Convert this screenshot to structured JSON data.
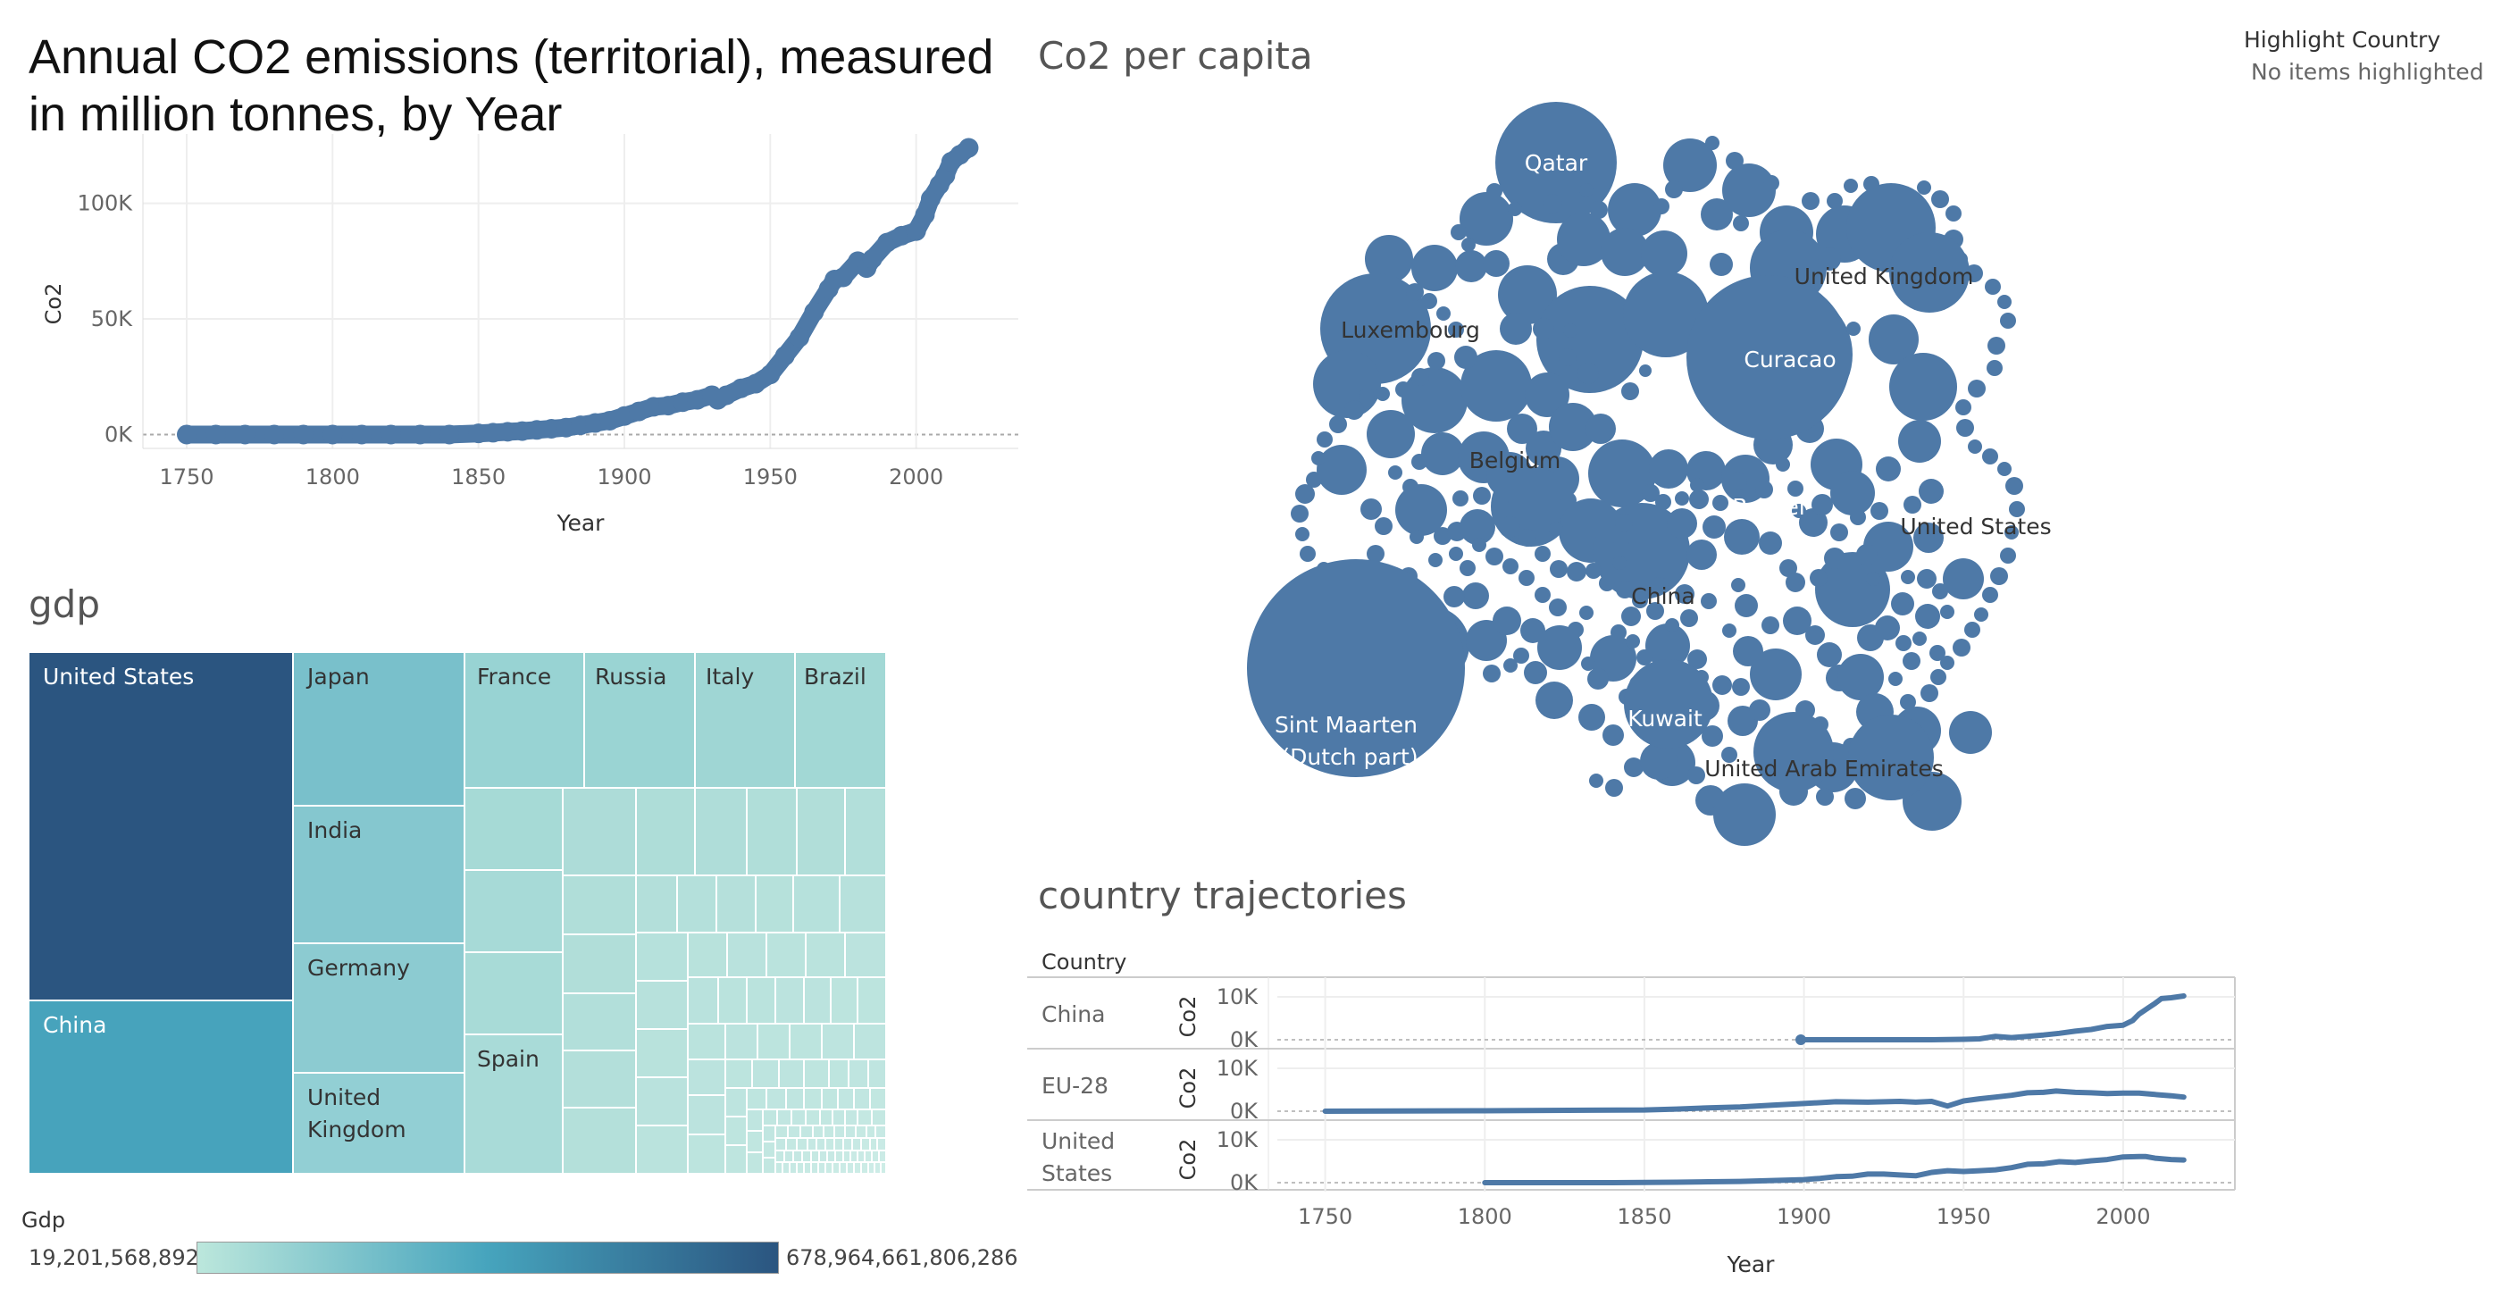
{
  "annual": {
    "title": "Annual CO2 emissions (territorial), measured in million tonnes, by Year",
    "ylabel": "Co2",
    "xlabel": "Year"
  },
  "highlight": {
    "title": "Highlight Country",
    "value": "No items highlighted"
  },
  "bubbles": {
    "title": "Co2 per capita"
  },
  "gdp": {
    "title": "gdp",
    "legend_title": "Gdp",
    "legend_min": "19,201,568,892",
    "legend_max": "678,964,661,806,286"
  },
  "trajectories": {
    "title": "country trajectories",
    "header": "Country",
    "xlabel": "Year"
  },
  "colors": {
    "series": "#4e79a7",
    "grid": "#eeeeee",
    "zero_line": "#aaaaaa",
    "treemap_dark": "#2b5580",
    "treemap_light": "#bce7dc"
  },
  "chart_data": [
    {
      "type": "scatter",
      "title": "Annual CO2 emissions (territorial), measured in million tonnes, by Year",
      "xlabel": "Year",
      "ylabel": "Co2",
      "xlim": [
        1735,
        2035
      ],
      "ylim": [
        -6000,
        130000
      ],
      "xticks": [
        1750,
        1800,
        1850,
        1900,
        1950,
        2000
      ],
      "xtick_labels": [
        "1750",
        "1800",
        "1850",
        "1900",
        "1950",
        "2000"
      ],
      "yticks": [
        0,
        50000,
        100000
      ],
      "ytick_labels": [
        "0K",
        "50K",
        "100K"
      ],
      "grid": true,
      "series": [
        {
          "x": [
            1750,
            1760,
            1770,
            1780,
            1790,
            1800,
            1810,
            1820,
            1830,
            1840,
            1850,
            1855,
            1860,
            1865,
            1870,
            1875,
            1880,
            1885,
            1890,
            1895,
            1900,
            1905,
            1910,
            1915,
            1920,
            1925,
            1930,
            1932,
            1935,
            1940,
            1945,
            1950,
            1955,
            1960,
            1965,
            1970,
            1972,
            1975,
            1980,
            1983,
            1985,
            1990,
            1995,
            2000,
            2003,
            2005,
            2008,
            2010,
            2012,
            2015,
            2018
          ],
          "y": [
            0,
            0,
            0,
            0,
            0,
            0,
            0,
            0,
            0,
            0,
            500,
            800,
            1200,
            1500,
            2000,
            2500,
            3000,
            4000,
            5000,
            6000,
            8000,
            10000,
            12000,
            12500,
            14000,
            15000,
            17000,
            15000,
            17000,
            20000,
            22000,
            26000,
            34000,
            42000,
            53000,
            63000,
            67000,
            68000,
            75000,
            72000,
            76000,
            83000,
            86000,
            88000,
            95000,
            102000,
            108000,
            112000,
            118000,
            121000,
            124000
          ]
        }
      ]
    },
    {
      "type": "bubble",
      "title": "Co2 per capita",
      "labels": [
        "Qatar",
        "United Kingdom",
        "Luxembourg",
        "Curacao",
        "Belgium",
        "Brunei",
        "United States",
        "China",
        "Kuwait",
        "United Arab Emirates",
        "Sint Maarten (Dutch part)"
      ]
    },
    {
      "type": "treemap",
      "title": "gdp",
      "labels": [
        "United States",
        "China",
        "Japan",
        "India",
        "Germany",
        "United Kingdom",
        "France",
        "Russia",
        "Italy",
        "Brazil",
        "Spain"
      ],
      "color_range": [
        "19,201,568,892",
        "678,964,661,806,286"
      ]
    },
    {
      "type": "line",
      "title": "country trajectories",
      "xlabel": "Year",
      "ylabel": "Co2",
      "xlim": [
        1735,
        2035
      ],
      "xticks": [
        1750,
        1800,
        1850,
        1900,
        1950,
        2000
      ],
      "xtick_labels": [
        "1750",
        "1800",
        "1850",
        "1900",
        "1950",
        "2000"
      ],
      "ytick_labels": [
        "10K",
        "0K"
      ],
      "grid": true,
      "series": [
        {
          "name": "China",
          "x": [
            1899,
            1910,
            1920,
            1930,
            1940,
            1950,
            1955,
            1960,
            1965,
            1970,
            1975,
            1980,
            1985,
            1990,
            1995,
            2000,
            2003,
            2005,
            2008,
            2010,
            2012,
            2015,
            2019
          ],
          "y": [
            0,
            0,
            0,
            0,
            0,
            100,
            200,
            800,
            500,
            800,
            1100,
            1500,
            2000,
            2400,
            3100,
            3400,
            4500,
            6000,
            7500,
            8500,
            9600,
            9800,
            10200
          ]
        },
        {
          "name": "EU-28",
          "x": [
            1750,
            1800,
            1850,
            1860,
            1870,
            1880,
            1890,
            1900,
            1910,
            1920,
            1930,
            1935,
            1940,
            1945,
            1950,
            1955,
            1960,
            1965,
            1970,
            1975,
            1979,
            1985,
            1990,
            1995,
            2000,
            2005,
            2010,
            2015,
            2019
          ],
          "y": [
            0,
            100,
            300,
            500,
            800,
            1000,
            1400,
            1800,
            2200,
            2100,
            2300,
            2100,
            2300,
            1200,
            2400,
            2900,
            3300,
            3700,
            4300,
            4400,
            4700,
            4400,
            4300,
            4100,
            4200,
            4200,
            3900,
            3600,
            3300
          ]
        },
        {
          "name": "United States",
          "x": [
            1800,
            1820,
            1840,
            1860,
            1870,
            1880,
            1890,
            1900,
            1905,
            1910,
            1915,
            1920,
            1925,
            1930,
            1935,
            1940,
            1945,
            1950,
            1955,
            1960,
            1965,
            1970,
            1975,
            1980,
            1985,
            1990,
            1995,
            2000,
            2005,
            2007,
            2010,
            2015,
            2019
          ],
          "y": [
            0,
            0,
            0,
            100,
            200,
            300,
            500,
            700,
            1000,
            1400,
            1500,
            2000,
            2000,
            1800,
            1600,
            2400,
            2800,
            2600,
            2800,
            3000,
            3500,
            4300,
            4400,
            4900,
            4700,
            5100,
            5400,
            6000,
            6100,
            6100,
            5700,
            5400,
            5300
          ]
        }
      ]
    }
  ]
}
